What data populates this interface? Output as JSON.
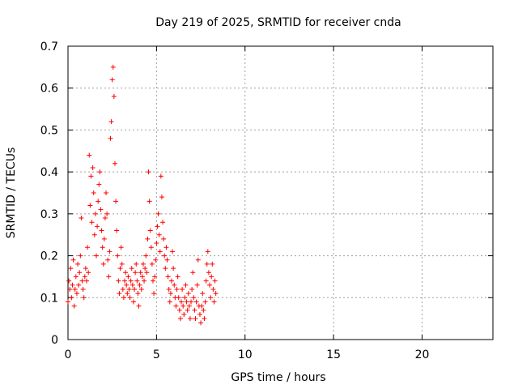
{
  "chart_data": {
    "type": "scatter",
    "title": "Day 219 of 2025, SRMTID for receiver cnda",
    "xlabel": "GPS time / hours",
    "ylabel": "SRMTID / TECUs",
    "xlim": [
      0,
      24
    ],
    "ylim": [
      0,
      0.7
    ],
    "xticks": [
      0,
      5,
      10,
      15,
      20
    ],
    "yticks": [
      0,
      0.1,
      0.2,
      0.3,
      0.4,
      0.5,
      0.6,
      0.7
    ],
    "xtick_labels": [
      "0",
      "5",
      "10",
      "15",
      "20"
    ],
    "ytick_labels": [
      "0",
      "0.1",
      "0.2",
      "0.3",
      "0.4",
      "0.5",
      "0.6",
      "0.7"
    ],
    "grid": true,
    "marker": "+",
    "color": "#ff0000",
    "series": [
      {
        "name": "cnda",
        "points": [
          [
            0.0,
            0.09
          ],
          [
            0.05,
            0.14
          ],
          [
            0.1,
            0.12
          ],
          [
            0.15,
            0.17
          ],
          [
            0.2,
            0.1
          ],
          [
            0.25,
            0.13
          ],
          [
            0.3,
            0.19
          ],
          [
            0.35,
            0.08
          ],
          [
            0.4,
            0.12
          ],
          [
            0.45,
            0.15
          ],
          [
            0.5,
            0.11
          ],
          [
            0.55,
            0.18
          ],
          [
            0.6,
            0.13
          ],
          [
            0.65,
            0.16
          ],
          [
            0.7,
            0.2
          ],
          [
            0.75,
            0.29
          ],
          [
            0.8,
            0.14
          ],
          [
            0.85,
            0.12
          ],
          [
            0.9,
            0.1
          ],
          [
            0.95,
            0.15
          ],
          [
            1.0,
            0.17
          ],
          [
            1.05,
            0.14
          ],
          [
            1.1,
            0.22
          ],
          [
            1.15,
            0.16
          ],
          [
            1.2,
            0.44
          ],
          [
            1.25,
            0.32
          ],
          [
            1.3,
            0.39
          ],
          [
            1.35,
            0.28
          ],
          [
            1.4,
            0.41
          ],
          [
            1.45,
            0.35
          ],
          [
            1.5,
            0.25
          ],
          [
            1.55,
            0.3
          ],
          [
            1.6,
            0.2
          ],
          [
            1.65,
            0.27
          ],
          [
            1.7,
            0.33
          ],
          [
            1.75,
            0.37
          ],
          [
            1.8,
            0.4
          ],
          [
            1.85,
            0.31
          ],
          [
            1.9,
            0.26
          ],
          [
            1.95,
            0.22
          ],
          [
            2.0,
            0.18
          ],
          [
            2.05,
            0.24
          ],
          [
            2.1,
            0.29
          ],
          [
            2.15,
            0.35
          ],
          [
            2.2,
            0.3
          ],
          [
            2.25,
            0.19
          ],
          [
            2.3,
            0.15
          ],
          [
            2.35,
            0.21
          ],
          [
            2.4,
            0.48
          ],
          [
            2.45,
            0.52
          ],
          [
            2.5,
            0.62
          ],
          [
            2.55,
            0.65
          ],
          [
            2.6,
            0.58
          ],
          [
            2.65,
            0.42
          ],
          [
            2.7,
            0.33
          ],
          [
            2.75,
            0.26
          ],
          [
            2.8,
            0.2
          ],
          [
            2.85,
            0.14
          ],
          [
            2.9,
            0.11
          ],
          [
            2.95,
            0.17
          ],
          [
            3.0,
            0.22
          ],
          [
            3.05,
            0.18
          ],
          [
            3.1,
            0.12
          ],
          [
            3.15,
            0.1
          ],
          [
            3.2,
            0.14
          ],
          [
            3.25,
            0.16
          ],
          [
            3.3,
            0.13
          ],
          [
            3.35,
            0.11
          ],
          [
            3.4,
            0.15
          ],
          [
            3.45,
            0.12
          ],
          [
            3.5,
            0.1
          ],
          [
            3.55,
            0.14
          ],
          [
            3.6,
            0.17
          ],
          [
            3.65,
            0.13
          ],
          [
            3.7,
            0.09
          ],
          [
            3.75,
            0.12
          ],
          [
            3.8,
            0.16
          ],
          [
            3.85,
            0.18
          ],
          [
            3.9,
            0.14
          ],
          [
            3.95,
            0.11
          ],
          [
            4.0,
            0.08
          ],
          [
            4.05,
            0.13
          ],
          [
            4.1,
            0.16
          ],
          [
            4.15,
            0.12
          ],
          [
            4.2,
            0.15
          ],
          [
            4.25,
            0.18
          ],
          [
            4.3,
            0.14
          ],
          [
            4.35,
            0.17
          ],
          [
            4.4,
            0.2
          ],
          [
            4.45,
            0.16
          ],
          [
            4.5,
            0.24
          ],
          [
            4.55,
            0.4
          ],
          [
            4.6,
            0.33
          ],
          [
            4.65,
            0.26
          ],
          [
            4.7,
            0.22
          ],
          [
            4.75,
            0.18
          ],
          [
            4.8,
            0.14
          ],
          [
            4.85,
            0.11
          ],
          [
            4.9,
            0.15
          ],
          [
            4.95,
            0.19
          ],
          [
            5.0,
            0.23
          ],
          [
            5.05,
            0.27
          ],
          [
            5.1,
            0.3
          ],
          [
            5.15,
            0.25
          ],
          [
            5.2,
            0.21
          ],
          [
            5.25,
            0.39
          ],
          [
            5.3,
            0.34
          ],
          [
            5.35,
            0.28
          ],
          [
            5.4,
            0.24
          ],
          [
            5.45,
            0.2
          ],
          [
            5.5,
            0.17
          ],
          [
            5.55,
            0.22
          ],
          [
            5.6,
            0.19
          ],
          [
            5.65,
            0.15
          ],
          [
            5.7,
            0.12
          ],
          [
            5.75,
            0.09
          ],
          [
            5.8,
            0.11
          ],
          [
            5.85,
            0.14
          ],
          [
            5.9,
            0.21
          ],
          [
            5.95,
            0.17
          ],
          [
            6.0,
            0.13
          ],
          [
            6.05,
            0.1
          ],
          [
            6.1,
            0.08
          ],
          [
            6.15,
            0.12
          ],
          [
            6.2,
            0.15
          ],
          [
            6.25,
            0.1
          ],
          [
            6.3,
            0.07
          ],
          [
            6.35,
            0.05
          ],
          [
            6.4,
            0.09
          ],
          [
            6.45,
            0.12
          ],
          [
            6.5,
            0.08
          ],
          [
            6.55,
            0.06
          ],
          [
            6.6,
            0.1
          ],
          [
            6.65,
            0.13
          ],
          [
            6.7,
            0.09
          ],
          [
            6.75,
            0.07
          ],
          [
            6.8,
            0.11
          ],
          [
            6.85,
            0.08
          ],
          [
            6.9,
            0.05
          ],
          [
            6.95,
            0.09
          ],
          [
            7.0,
            0.12
          ],
          [
            7.05,
            0.16
          ],
          [
            7.1,
            0.1
          ],
          [
            7.15,
            0.07
          ],
          [
            7.2,
            0.05
          ],
          [
            7.25,
            0.09
          ],
          [
            7.3,
            0.13
          ],
          [
            7.35,
            0.19
          ],
          [
            7.4,
            0.08
          ],
          [
            7.45,
            0.06
          ],
          [
            7.5,
            0.04
          ],
          [
            7.55,
            0.08
          ],
          [
            7.6,
            0.11
          ],
          [
            7.65,
            0.07
          ],
          [
            7.7,
            0.05
          ],
          [
            7.75,
            0.09
          ],
          [
            7.8,
            0.14
          ],
          [
            7.85,
            0.18
          ],
          [
            7.9,
            0.21
          ],
          [
            7.95,
            0.16
          ],
          [
            8.0,
            0.13
          ],
          [
            8.05,
            0.1
          ],
          [
            8.1,
            0.15
          ],
          [
            8.15,
            0.18
          ],
          [
            8.2,
            0.12
          ],
          [
            8.25,
            0.09
          ],
          [
            8.3,
            0.14
          ],
          [
            8.35,
            0.11
          ]
        ]
      }
    ]
  }
}
